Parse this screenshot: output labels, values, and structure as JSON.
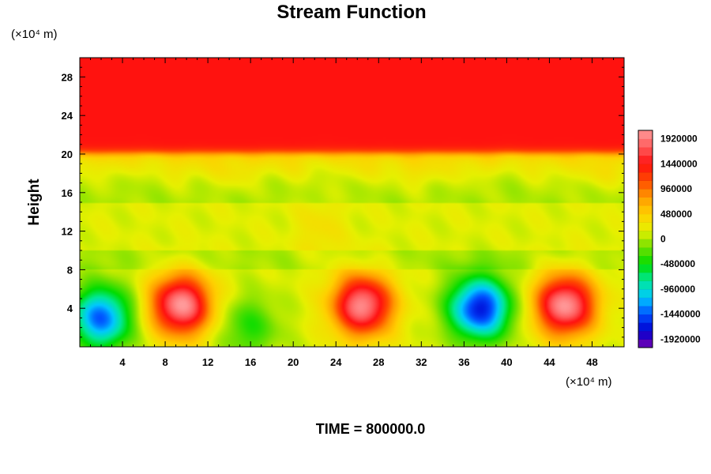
{
  "chart_data": {
    "type": "heatmap",
    "title": "Stream Function",
    "ylabel": "Height",
    "xlabel": "",
    "x_unit": "(×10⁴ m)",
    "y_unit": "(×10⁴ m)",
    "xlim": [
      0,
      51
    ],
    "ylim": [
      0,
      30
    ],
    "x_ticks": [
      4,
      8,
      12,
      16,
      20,
      24,
      28,
      32,
      36,
      40,
      44,
      48
    ],
    "y_ticks": [
      4,
      8,
      12,
      16,
      20,
      24,
      28
    ],
    "colorbar": {
      "range": [
        -2080000,
        2080000
      ],
      "tick_values": [
        1920000,
        1440000,
        960000,
        480000,
        0,
        -480000,
        -960000,
        -1440000,
        -1920000
      ],
      "tick_labels": [
        "1920000",
        "1440000",
        "960000",
        "480000",
        "0",
        "-480000",
        "-960000",
        "-1440000",
        "-1920000"
      ],
      "colors_low_to_high": [
        "#7a00b0",
        "#0000d0",
        "#0050ff",
        "#00c8ff",
        "#00e89a",
        "#00dc00",
        "#70e000",
        "#e6f000",
        "#ffd000",
        "#ff9a00",
        "#ff4a00",
        "#ff1010",
        "#ff5a5a",
        "#ff9a9a"
      ]
    },
    "field_features": [
      {
        "kind": "upper_layer",
        "y_from": 20,
        "y_to": 30,
        "value": 1500000
      },
      {
        "kind": "positive_cell",
        "center": [
          9.5,
          4.3
        ],
        "peak": 1950000
      },
      {
        "kind": "positive_cell",
        "center": [
          26.5,
          4.3
        ],
        "peak": 1900000
      },
      {
        "kind": "positive_cell",
        "center": [
          45.5,
          4.3
        ],
        "peak": 1950000
      },
      {
        "kind": "negative_cell",
        "center": [
          2,
          3
        ],
        "peak": -1500000
      },
      {
        "kind": "negative_cell",
        "center": [
          15.8,
          2
        ],
        "peak": -500000
      },
      {
        "kind": "negative_cell",
        "center": [
          37.5,
          4
        ],
        "peak": -1800000
      }
    ],
    "annotation": "TIME = 800000.0"
  }
}
